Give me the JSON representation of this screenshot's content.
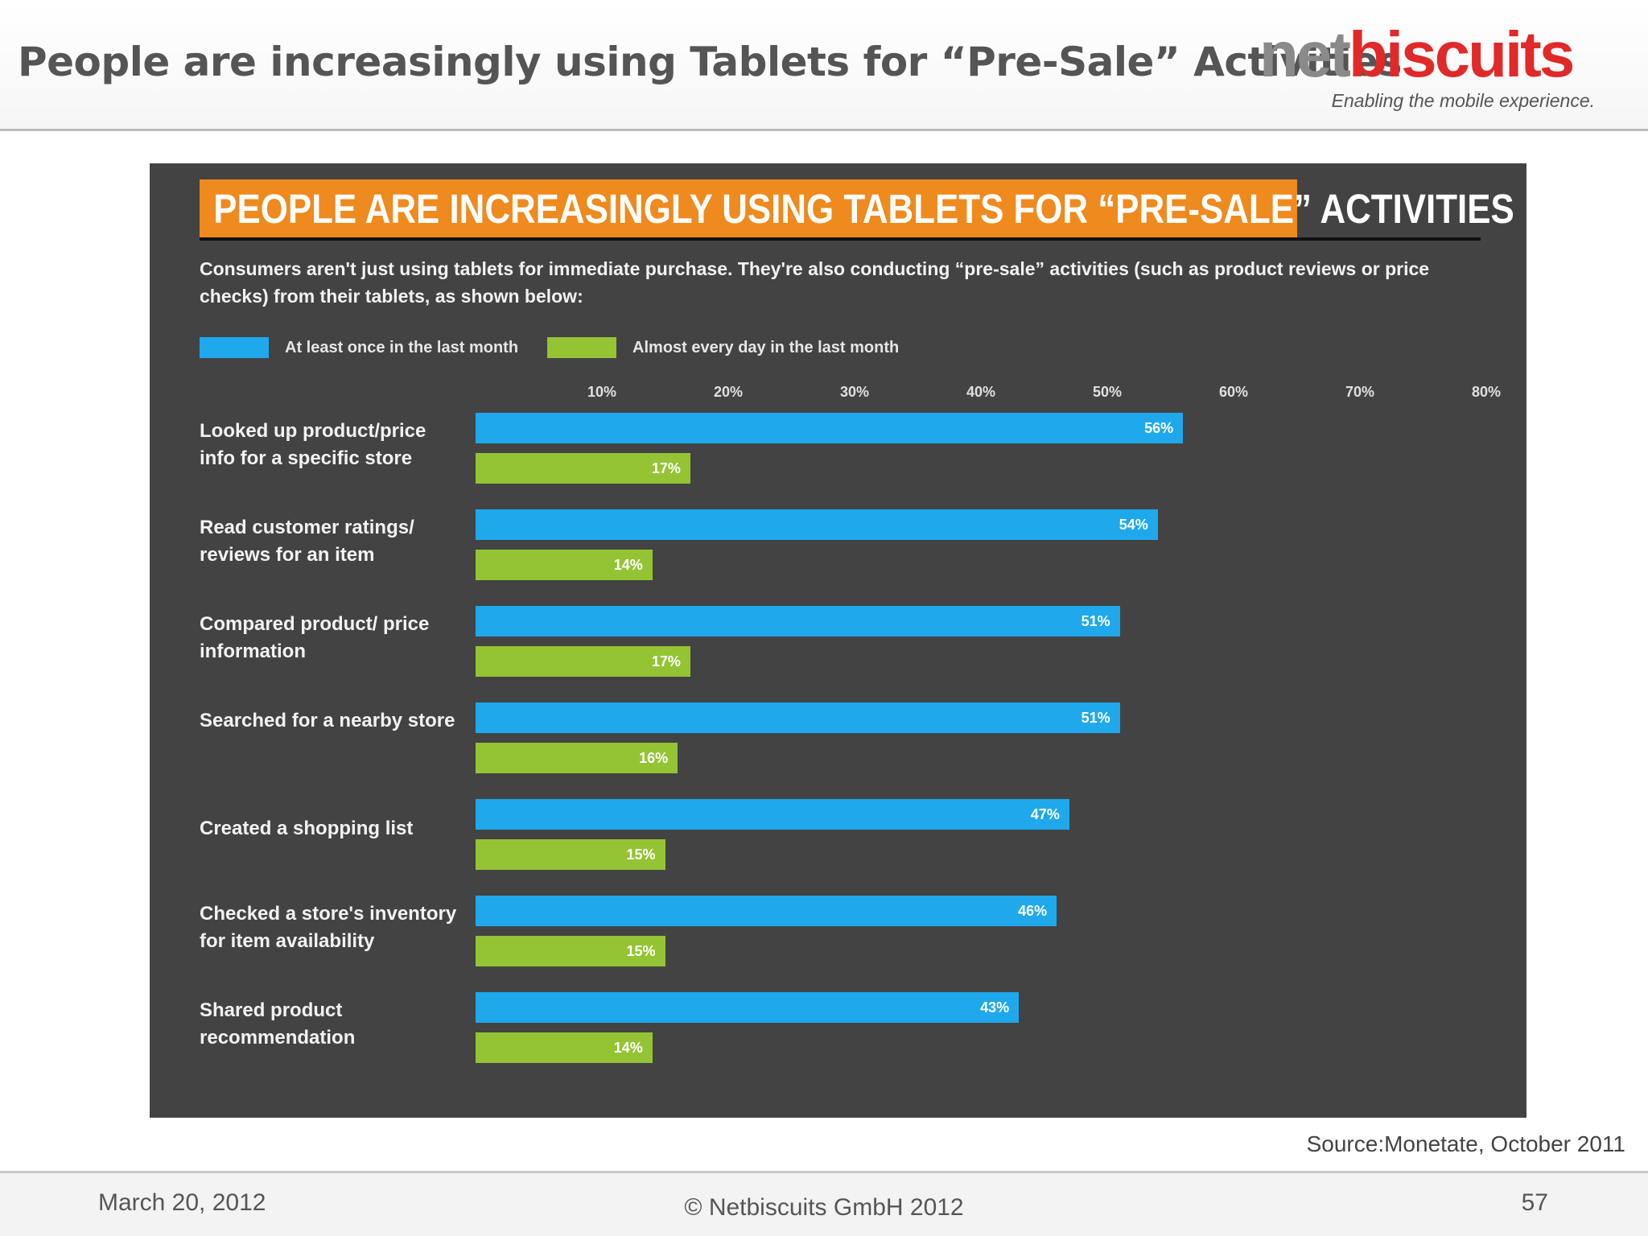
{
  "slide": {
    "title": "People are increasingly using Tablets for “Pre-Sale” Activities",
    "logo": {
      "net": "net",
      "biscuits": "biscuits",
      "tagline": "Enabling the mobile experience."
    }
  },
  "infographic": {
    "banner": "PEOPLE ARE INCREASINGLY USING TABLETS FOR “PRE-SALE” ACTIVITIES",
    "intro": "Consumers aren't just using tablets for immediate purchase. They're also conducting “pre-sale” activities (such as product reviews or price checks) from their tablets, as shown below:"
  },
  "chart_data": {
    "type": "bar",
    "orientation": "horizontal",
    "categories": [
      "Looked up product/price info for a specific store",
      "Read customer ratings/ reviews for an item",
      "Compared product/ price information",
      "Searched for a nearby store",
      "Created a shopping list",
      "Checked a store's inventory for item availability",
      "Shared product recommendation"
    ],
    "series": [
      {
        "name": "At least once in the last month",
        "color": "#1fa9ec",
        "values": [
          56,
          54,
          51,
          51,
          47,
          46,
          43
        ],
        "labels": [
          "56%",
          "54%",
          "51%",
          "51%",
          "47%",
          "46%",
          "43%"
        ]
      },
      {
        "name": "Almost every day in the last month",
        "color": "#94c434",
        "values": [
          17,
          14,
          17,
          16,
          15,
          15,
          14
        ],
        "labels": [
          "17%",
          "14%",
          "17%",
          "16%",
          "15%",
          "15%",
          "14%"
        ]
      }
    ],
    "x_ticks": [
      "10%",
      "20%",
      "30%",
      "40%",
      "50%",
      "60%",
      "70%",
      "80%"
    ],
    "xlim": [
      0,
      80
    ],
    "legend_position": "top-left",
    "grid": false
  },
  "footer": {
    "source": "Source:Monetate, October 2011",
    "date": "March 20, 2012",
    "copyright": "© Netbiscuits GmbH 2012",
    "page_number": "57"
  }
}
